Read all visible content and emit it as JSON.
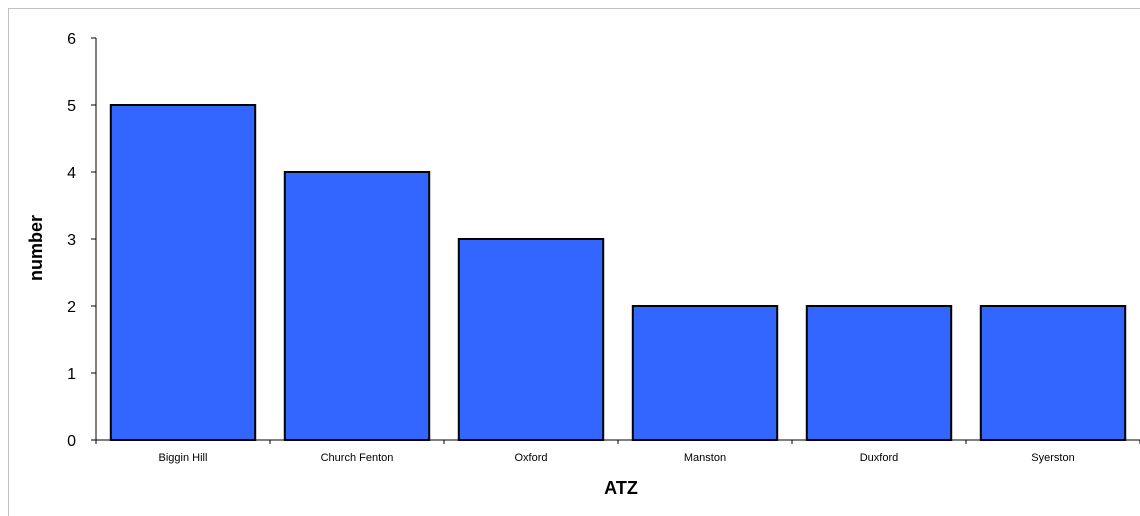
{
  "chart_data": {
    "type": "bar",
    "title": "",
    "xlabel": "ATZ",
    "ylabel": "number",
    "categories": [
      "Biggin Hill",
      "Church Fenton",
      "Oxford",
      "Manston",
      "Duxford",
      "Syerston"
    ],
    "values": [
      5,
      4,
      3,
      2,
      2,
      2
    ],
    "ylim": [
      0,
      6
    ],
    "yticks": [
      0,
      1,
      2,
      3,
      4,
      5,
      6
    ],
    "grid": false,
    "legend": "none",
    "bar_color": "#3366ff",
    "bar_edge_color": "#000000"
  }
}
